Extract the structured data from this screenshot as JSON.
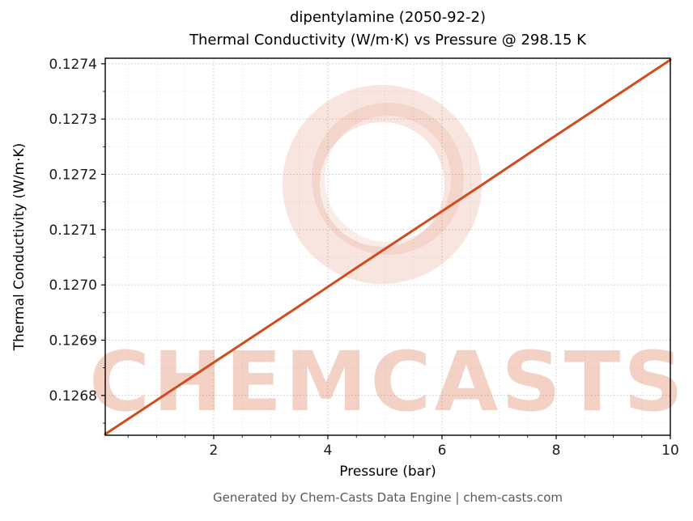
{
  "title": {
    "line1": "dipentylamine (2050-92-2)",
    "line2": "Thermal Conductivity (W/m·K) vs Pressure @ 298.15 K"
  },
  "axes": {
    "xlabel": "Pressure (bar)",
    "ylabel": "Thermal Conductivity (W/m·K)"
  },
  "footer": "Generated by Chem-Casts Data Engine | chem-casts.com",
  "watermark": {
    "text": "CHEMCASTS",
    "color": "#d24a1e",
    "text_opacity": 0.25,
    "ring_opacity": 0.14
  },
  "colors": {
    "line": "#d24a1e",
    "grid_major": "#c9c9c9",
    "grid_minor": "#e4e4e4",
    "spine": "#000000",
    "tick_label": "#1a1a1a",
    "footer_text": "#595959"
  },
  "chart_data": {
    "type": "line",
    "title": "dipentylamine (2050-92-2) — Thermal Conductivity (W/m·K) vs Pressure @ 298.15 K",
    "xlabel": "Pressure (bar)",
    "ylabel": "Thermal Conductivity (W/m·K)",
    "xlim": [
      0.1,
      10
    ],
    "ylim": [
      0.126728,
      0.12741
    ],
    "xticks": [
      2,
      4,
      6,
      8,
      10
    ],
    "xtick_labels": [
      "2",
      "4",
      "6",
      "8",
      "10"
    ],
    "yticks": [
      0.1268,
      0.1269,
      0.127,
      0.1271,
      0.1272,
      0.1273,
      0.1274
    ],
    "ytick_labels": [
      "0.1268",
      "0.1269",
      "0.1270",
      "0.1271",
      "0.1272",
      "0.1273",
      "0.1274"
    ],
    "grid": true,
    "legend": false,
    "series": [
      {
        "name": "thermal_conductivity_vs_pressure",
        "x": [
          0.1,
          1.2,
          2.3,
          3.4,
          4.5,
          5.6,
          6.7,
          7.8,
          8.9,
          10.0
        ],
        "y": [
          0.12673,
          0.126805,
          0.12688,
          0.126955,
          0.127031,
          0.127106,
          0.127181,
          0.127257,
          0.127332,
          0.127407
        ]
      }
    ]
  }
}
